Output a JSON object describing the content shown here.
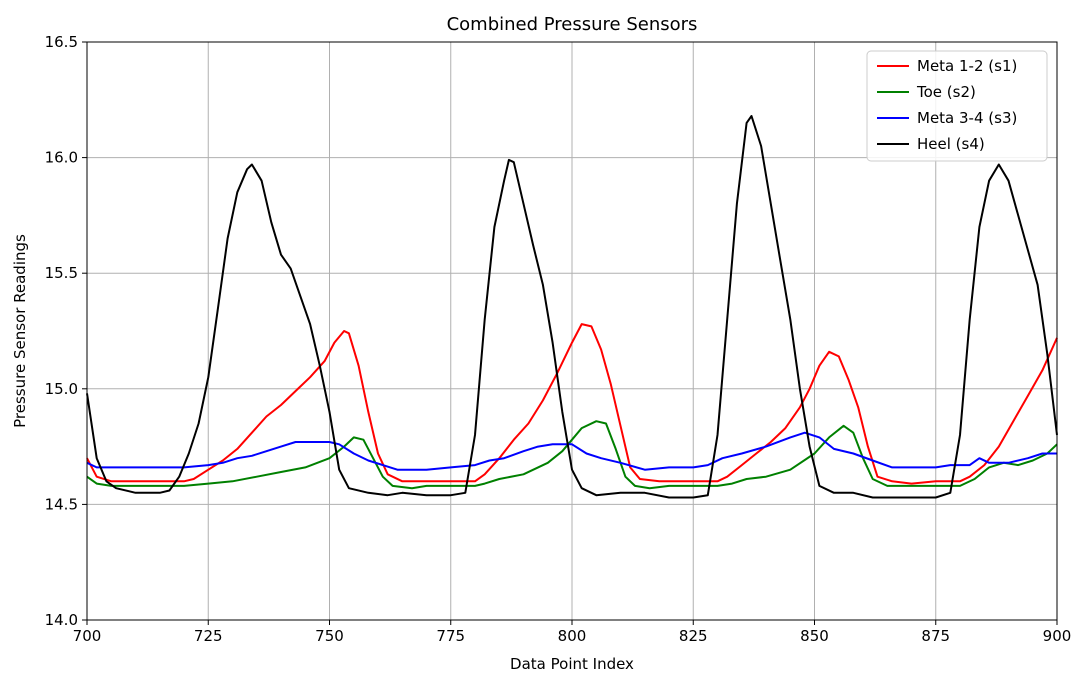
{
  "chart_data": {
    "type": "line",
    "title": "Combined Pressure Sensors",
    "xlabel": "Data Point Index",
    "ylabel": "Pressure Sensor Readings",
    "xlim": [
      700,
      900
    ],
    "ylim": [
      14.0,
      16.5
    ],
    "xticks": [
      700,
      725,
      750,
      775,
      800,
      825,
      850,
      875,
      900
    ],
    "yticks": [
      14.0,
      14.5,
      15.0,
      15.5,
      16.0,
      16.5
    ],
    "xtick_labels": [
      "700",
      "725",
      "750",
      "775",
      "800",
      "825",
      "850",
      "875",
      "900"
    ],
    "ytick_labels": [
      "14.0",
      "14.5",
      "15.0",
      "15.5",
      "16.0",
      "16.5"
    ],
    "grid": true,
    "legend_position": "top-right",
    "series": [
      {
        "name": "Meta 1-2 (s1)",
        "color": "#ff0000",
        "points": [
          [
            700,
            14.7
          ],
          [
            702,
            14.62
          ],
          [
            705,
            14.6
          ],
          [
            710,
            14.6
          ],
          [
            715,
            14.6
          ],
          [
            720,
            14.6
          ],
          [
            722,
            14.61
          ],
          [
            725,
            14.65
          ],
          [
            728,
            14.69
          ],
          [
            731,
            14.74
          ],
          [
            734,
            14.81
          ],
          [
            737,
            14.88
          ],
          [
            740,
            14.93
          ],
          [
            743,
            14.99
          ],
          [
            746,
            15.05
          ],
          [
            749,
            15.12
          ],
          [
            751,
            15.2
          ],
          [
            753,
            15.25
          ],
          [
            754,
            15.24
          ],
          [
            756,
            15.1
          ],
          [
            758,
            14.9
          ],
          [
            760,
            14.72
          ],
          [
            762,
            14.63
          ],
          [
            765,
            14.6
          ],
          [
            770,
            14.6
          ],
          [
            775,
            14.6
          ],
          [
            780,
            14.6
          ],
          [
            782,
            14.63
          ],
          [
            785,
            14.7
          ],
          [
            788,
            14.78
          ],
          [
            791,
            14.85
          ],
          [
            794,
            14.95
          ],
          [
            797,
            15.07
          ],
          [
            800,
            15.2
          ],
          [
            802,
            15.28
          ],
          [
            804,
            15.27
          ],
          [
            806,
            15.17
          ],
          [
            808,
            15.02
          ],
          [
            810,
            14.84
          ],
          [
            812,
            14.66
          ],
          [
            814,
            14.61
          ],
          [
            818,
            14.6
          ],
          [
            822,
            14.6
          ],
          [
            828,
            14.6
          ],
          [
            830,
            14.6
          ],
          [
            832,
            14.62
          ],
          [
            835,
            14.67
          ],
          [
            838,
            14.72
          ],
          [
            841,
            14.77
          ],
          [
            844,
            14.83
          ],
          [
            847,
            14.92
          ],
          [
            849,
            15.0
          ],
          [
            851,
            15.1
          ],
          [
            853,
            15.16
          ],
          [
            855,
            15.14
          ],
          [
            857,
            15.04
          ],
          [
            859,
            14.92
          ],
          [
            861,
            14.75
          ],
          [
            863,
            14.62
          ],
          [
            866,
            14.6
          ],
          [
            870,
            14.59
          ],
          [
            875,
            14.6
          ],
          [
            880,
            14.6
          ],
          [
            882,
            14.62
          ],
          [
            885,
            14.67
          ],
          [
            888,
            14.75
          ],
          [
            891,
            14.86
          ],
          [
            894,
            14.97
          ],
          [
            897,
            15.08
          ],
          [
            900,
            15.22
          ]
        ]
      },
      {
        "name": "Toe (s2)",
        "color": "#008000",
        "points": [
          [
            700,
            14.62
          ],
          [
            702,
            14.59
          ],
          [
            705,
            14.58
          ],
          [
            710,
            14.58
          ],
          [
            715,
            14.58
          ],
          [
            720,
            14.58
          ],
          [
            725,
            14.59
          ],
          [
            730,
            14.6
          ],
          [
            735,
            14.62
          ],
          [
            740,
            14.64
          ],
          [
            745,
            14.66
          ],
          [
            750,
            14.7
          ],
          [
            753,
            14.75
          ],
          [
            755,
            14.79
          ],
          [
            757,
            14.78
          ],
          [
            759,
            14.7
          ],
          [
            761,
            14.62
          ],
          [
            763,
            14.58
          ],
          [
            767,
            14.57
          ],
          [
            770,
            14.58
          ],
          [
            775,
            14.58
          ],
          [
            780,
            14.58
          ],
          [
            782,
            14.59
          ],
          [
            785,
            14.61
          ],
          [
            790,
            14.63
          ],
          [
            795,
            14.68
          ],
          [
            798,
            14.73
          ],
          [
            800,
            14.78
          ],
          [
            802,
            14.83
          ],
          [
            805,
            14.86
          ],
          [
            807,
            14.85
          ],
          [
            809,
            14.74
          ],
          [
            811,
            14.62
          ],
          [
            813,
            14.58
          ],
          [
            816,
            14.57
          ],
          [
            820,
            14.58
          ],
          [
            825,
            14.58
          ],
          [
            830,
            14.58
          ],
          [
            833,
            14.59
          ],
          [
            836,
            14.61
          ],
          [
            840,
            14.62
          ],
          [
            845,
            14.65
          ],
          [
            850,
            14.72
          ],
          [
            853,
            14.79
          ],
          [
            856,
            14.84
          ],
          [
            858,
            14.81
          ],
          [
            860,
            14.7
          ],
          [
            862,
            14.61
          ],
          [
            865,
            14.58
          ],
          [
            870,
            14.58
          ],
          [
            875,
            14.58
          ],
          [
            880,
            14.58
          ],
          [
            883,
            14.61
          ],
          [
            886,
            14.66
          ],
          [
            889,
            14.68
          ],
          [
            892,
            14.67
          ],
          [
            895,
            14.69
          ],
          [
            898,
            14.72
          ],
          [
            900,
            14.76
          ]
        ]
      },
      {
        "name": "Meta 3-4 (s3)",
        "color": "#0000ff",
        "points": [
          [
            700,
            14.68
          ],
          [
            702,
            14.66
          ],
          [
            710,
            14.66
          ],
          [
            720,
            14.66
          ],
          [
            725,
            14.67
          ],
          [
            728,
            14.68
          ],
          [
            731,
            14.7
          ],
          [
            734,
            14.71
          ],
          [
            737,
            14.73
          ],
          [
            740,
            14.75
          ],
          [
            743,
            14.77
          ],
          [
            746,
            14.77
          ],
          [
            750,
            14.77
          ],
          [
            752,
            14.76
          ],
          [
            755,
            14.72
          ],
          [
            758,
            14.69
          ],
          [
            761,
            14.67
          ],
          [
            764,
            14.65
          ],
          [
            770,
            14.65
          ],
          [
            775,
            14.66
          ],
          [
            780,
            14.67
          ],
          [
            783,
            14.69
          ],
          [
            786,
            14.7
          ],
          [
            790,
            14.73
          ],
          [
            793,
            14.75
          ],
          [
            796,
            14.76
          ],
          [
            800,
            14.76
          ],
          [
            803,
            14.72
          ],
          [
            806,
            14.7
          ],
          [
            810,
            14.68
          ],
          [
            815,
            14.65
          ],
          [
            820,
            14.66
          ],
          [
            825,
            14.66
          ],
          [
            828,
            14.67
          ],
          [
            831,
            14.7
          ],
          [
            835,
            14.72
          ],
          [
            840,
            14.75
          ],
          [
            845,
            14.79
          ],
          [
            848,
            14.81
          ],
          [
            851,
            14.79
          ],
          [
            854,
            14.74
          ],
          [
            858,
            14.72
          ],
          [
            862,
            14.69
          ],
          [
            866,
            14.66
          ],
          [
            870,
            14.66
          ],
          [
            875,
            14.66
          ],
          [
            878,
            14.67
          ],
          [
            882,
            14.67
          ],
          [
            884,
            14.7
          ],
          [
            886,
            14.68
          ],
          [
            890,
            14.68
          ],
          [
            894,
            14.7
          ],
          [
            897,
            14.72
          ],
          [
            900,
            14.72
          ]
        ]
      },
      {
        "name": "Heel (s4)",
        "color": "#000000",
        "points": [
          [
            700,
            14.98
          ],
          [
            702,
            14.7
          ],
          [
            704,
            14.6
          ],
          [
            706,
            14.57
          ],
          [
            710,
            14.55
          ],
          [
            715,
            14.55
          ],
          [
            717,
            14.56
          ],
          [
            719,
            14.62
          ],
          [
            721,
            14.72
          ],
          [
            723,
            14.85
          ],
          [
            725,
            15.05
          ],
          [
            727,
            15.35
          ],
          [
            729,
            15.65
          ],
          [
            731,
            15.85
          ],
          [
            733,
            15.95
          ],
          [
            734,
            15.97
          ],
          [
            736,
            15.9
          ],
          [
            738,
            15.72
          ],
          [
            740,
            15.58
          ],
          [
            742,
            15.52
          ],
          [
            744,
            15.4
          ],
          [
            746,
            15.28
          ],
          [
            748,
            15.1
          ],
          [
            750,
            14.9
          ],
          [
            752,
            14.65
          ],
          [
            754,
            14.57
          ],
          [
            758,
            14.55
          ],
          [
            762,
            14.54
          ],
          [
            765,
            14.55
          ],
          [
            770,
            14.54
          ],
          [
            775,
            14.54
          ],
          [
            778,
            14.55
          ],
          [
            780,
            14.8
          ],
          [
            782,
            15.3
          ],
          [
            784,
            15.7
          ],
          [
            786,
            15.9
          ],
          [
            787,
            15.99
          ],
          [
            788,
            15.98
          ],
          [
            790,
            15.8
          ],
          [
            792,
            15.62
          ],
          [
            794,
            15.45
          ],
          [
            796,
            15.2
          ],
          [
            798,
            14.9
          ],
          [
            800,
            14.65
          ],
          [
            802,
            14.57
          ],
          [
            805,
            14.54
          ],
          [
            810,
            14.55
          ],
          [
            815,
            14.55
          ],
          [
            820,
            14.53
          ],
          [
            825,
            14.53
          ],
          [
            828,
            14.54
          ],
          [
            830,
            14.8
          ],
          [
            832,
            15.3
          ],
          [
            834,
            15.8
          ],
          [
            836,
            16.15
          ],
          [
            837,
            16.18
          ],
          [
            839,
            16.05
          ],
          [
            841,
            15.8
          ],
          [
            843,
            15.55
          ],
          [
            845,
            15.3
          ],
          [
            847,
            15.0
          ],
          [
            849,
            14.75
          ],
          [
            851,
            14.58
          ],
          [
            854,
            14.55
          ],
          [
            858,
            14.55
          ],
          [
            862,
            14.53
          ],
          [
            866,
            14.53
          ],
          [
            870,
            14.53
          ],
          [
            875,
            14.53
          ],
          [
            878,
            14.55
          ],
          [
            880,
            14.8
          ],
          [
            882,
            15.3
          ],
          [
            884,
            15.7
          ],
          [
            886,
            15.9
          ],
          [
            888,
            15.97
          ],
          [
            890,
            15.9
          ],
          [
            892,
            15.75
          ],
          [
            894,
            15.6
          ],
          [
            896,
            15.45
          ],
          [
            898,
            15.15
          ],
          [
            900,
            14.8
          ]
        ]
      }
    ]
  }
}
